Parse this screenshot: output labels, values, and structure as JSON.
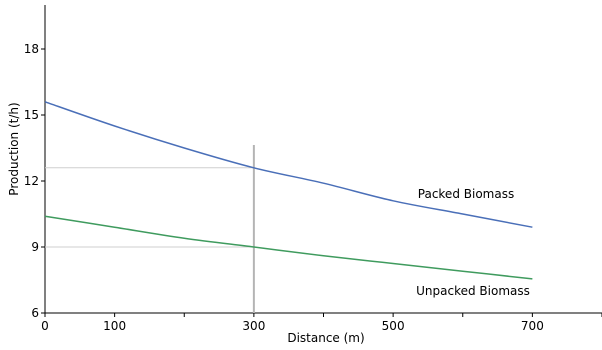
{
  "chart_data": {
    "type": "line",
    "title": "",
    "xlabel": "Distance (m)",
    "ylabel": "Production (t/h)",
    "xlim": [
      0,
      800
    ],
    "ylim": [
      6,
      20
    ],
    "x_ticks": [
      0,
      100,
      300,
      500,
      700
    ],
    "x_minor_ticks": [
      200,
      400,
      600,
      800
    ],
    "y_ticks": [
      6,
      9,
      12,
      15,
      18
    ],
    "grid": false,
    "series": [
      {
        "name": "Packed Biomass",
        "color": "#4a6fb8",
        "x": [
          0,
          100,
          200,
          300,
          400,
          500,
          600,
          700
        ],
        "y": [
          15.6,
          14.5,
          13.5,
          12.6,
          11.9,
          11.1,
          10.5,
          9.9
        ]
      },
      {
        "name": "Unpacked Biomass",
        "color": "#3f9b5e",
        "x": [
          0,
          100,
          200,
          300,
          400,
          500,
          600,
          700
        ],
        "y": [
          10.4,
          9.9,
          9.4,
          9.0,
          8.6,
          8.25,
          7.9,
          7.55
        ]
      }
    ],
    "reference": {
      "x": 300,
      "y_values": [
        12.6,
        9.0
      ],
      "line_color": "#b4b4b4",
      "guide_color": "#cfcfcf"
    }
  }
}
